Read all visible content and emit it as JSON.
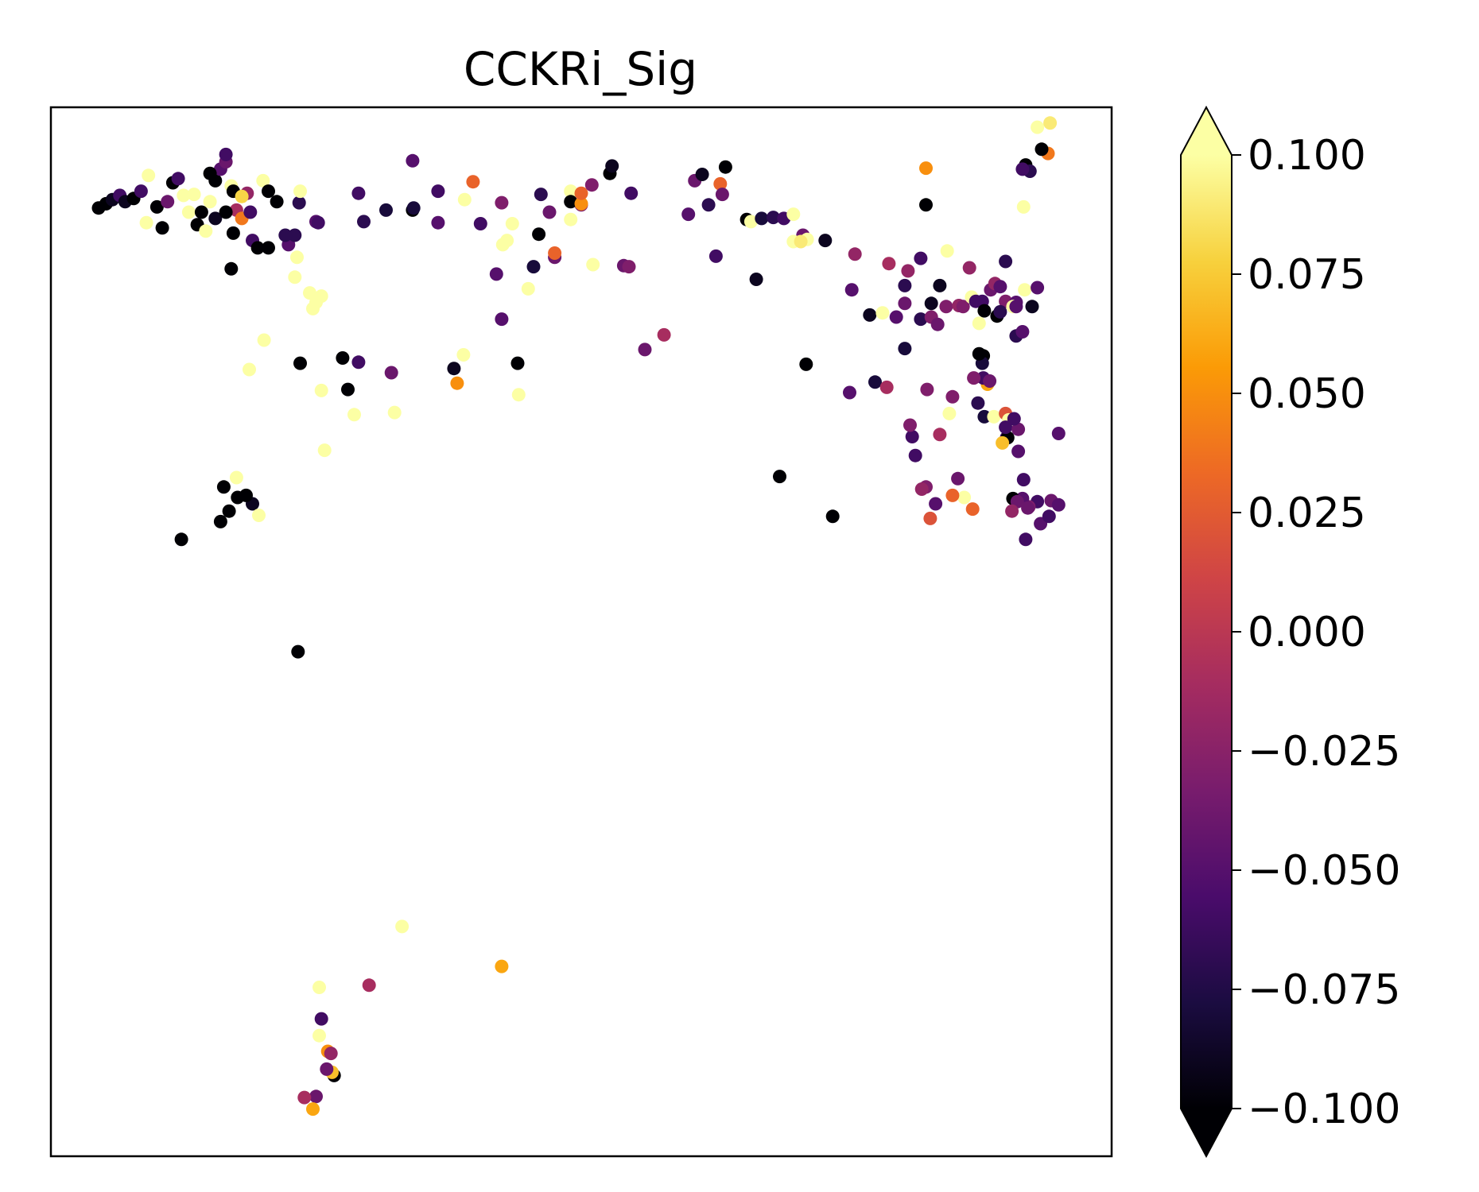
{
  "chart_data": {
    "type": "scatter",
    "title": "CCKRi_Sig",
    "xlabel": "",
    "ylabel": "",
    "xlim": [
      0,
      1
    ],
    "ylim": [
      0,
      1
    ],
    "grid": false,
    "axes_ticks": false,
    "colormap": "inferno",
    "colorbar": {
      "min": -0.1,
      "max": 0.1,
      "extend": "both",
      "ticks": [
        0.1,
        0.075,
        0.05,
        0.025,
        0.0,
        -0.025,
        -0.05,
        -0.075,
        -0.1
      ],
      "tick_labels": [
        "0.100",
        "0.075",
        "0.050",
        "0.025",
        "0.000",
        "−0.025",
        "−0.050",
        "−0.075",
        "−0.100"
      ]
    },
    "colormap_stops": [
      "#000004",
      "#1b0c41",
      "#4a0c6b",
      "#781c6d",
      "#a52c60",
      "#cf4446",
      "#ed6925",
      "#fb9b06",
      "#f7d13d",
      "#fcffa4"
    ],
    "points": [
      [
        0.045,
        0.904,
        -0.1
      ],
      [
        0.052,
        0.908,
        -0.1
      ],
      [
        0.058,
        0.912,
        -0.09
      ],
      [
        0.065,
        0.916,
        -0.06
      ],
      [
        0.07,
        0.91,
        -0.09
      ],
      [
        0.078,
        0.913,
        -0.1
      ],
      [
        0.085,
        0.92,
        -0.06
      ],
      [
        0.092,
        0.935,
        0.1
      ],
      [
        0.09,
        0.89,
        0.1
      ],
      [
        0.1,
        0.905,
        -0.1
      ],
      [
        0.105,
        0.885,
        -0.1
      ],
      [
        0.11,
        0.91,
        -0.04
      ],
      [
        0.115,
        0.928,
        -0.1
      ],
      [
        0.12,
        0.932,
        -0.06
      ],
      [
        0.125,
        0.916,
        0.1
      ],
      [
        0.13,
        0.9,
        0.1
      ],
      [
        0.135,
        0.917,
        0.1
      ],
      [
        0.142,
        0.9,
        -0.1
      ],
      [
        0.15,
        0.91,
        0.1
      ],
      [
        0.155,
        0.93,
        -0.1
      ],
      [
        0.16,
        0.941,
        -0.05
      ],
      [
        0.165,
        0.948,
        -0.04
      ],
      [
        0.17,
        0.925,
        0.1
      ],
      [
        0.172,
        0.92,
        -0.1
      ],
      [
        0.175,
        0.902,
        -0.01
      ],
      [
        0.18,
        0.894,
        0.04
      ],
      [
        0.185,
        0.918,
        -0.02
      ],
      [
        0.19,
        0.873,
        -0.06
      ],
      [
        0.2,
        0.93,
        0.1
      ],
      [
        0.205,
        0.92,
        -0.1
      ],
      [
        0.138,
        0.888,
        -0.1
      ],
      [
        0.15,
        0.937,
        -0.1
      ],
      [
        0.155,
        0.894,
        -0.09
      ],
      [
        0.17,
        0.846,
        -0.1
      ],
      [
        0.165,
        0.955,
        -0.06
      ],
      [
        0.188,
        0.9,
        -0.06
      ],
      [
        0.18,
        0.915,
        0.08
      ],
      [
        0.195,
        0.866,
        -0.1
      ],
      [
        0.172,
        0.88,
        -0.1
      ],
      [
        0.165,
        0.9,
        -0.1
      ],
      [
        0.146,
        0.882,
        0.1
      ],
      [
        0.205,
        0.866,
        -0.1
      ],
      [
        0.213,
        0.91,
        -0.1
      ],
      [
        0.224,
        0.869,
        -0.05
      ],
      [
        0.232,
        0.857,
        0.1
      ],
      [
        0.234,
        0.909,
        -0.07
      ],
      [
        0.25,
        0.891,
        -0.05
      ],
      [
        0.252,
        0.89,
        -0.06
      ],
      [
        0.235,
        0.92,
        0.1
      ],
      [
        0.23,
        0.878,
        -0.07
      ],
      [
        0.23,
        0.838,
        0.1
      ],
      [
        0.244,
        0.823,
        0.1
      ],
      [
        0.25,
        0.814,
        0.1
      ],
      [
        0.255,
        0.82,
        0.1
      ],
      [
        0.247,
        0.808,
        0.1
      ],
      [
        0.221,
        0.878,
        -0.07
      ],
      [
        0.201,
        0.778,
        0.1
      ],
      [
        0.187,
        0.75,
        0.1
      ],
      [
        0.235,
        0.756,
        -0.1
      ],
      [
        0.275,
        0.761,
        -0.1
      ],
      [
        0.29,
        0.757,
        -0.06
      ],
      [
        0.255,
        0.73,
        0.1
      ],
      [
        0.28,
        0.731,
        -0.1
      ],
      [
        0.286,
        0.707,
        0.1
      ],
      [
        0.324,
        0.709,
        0.1
      ],
      [
        0.321,
        0.747,
        -0.04
      ],
      [
        0.389,
        0.764,
        0.1
      ],
      [
        0.38,
        0.751,
        -0.09
      ],
      [
        0.383,
        0.737,
        0.05
      ],
      [
        0.44,
        0.756,
        -0.1
      ],
      [
        0.441,
        0.726,
        0.1
      ],
      [
        0.258,
        0.673,
        0.1
      ],
      [
        0.163,
        0.638,
        -0.1
      ],
      [
        0.168,
        0.615,
        -0.1
      ],
      [
        0.16,
        0.605,
        -0.1
      ],
      [
        0.123,
        0.588,
        -0.1
      ],
      [
        0.19,
        0.622,
        -0.09
      ],
      [
        0.184,
        0.63,
        -0.1
      ],
      [
        0.196,
        0.611,
        0.1
      ],
      [
        0.176,
        0.628,
        -0.1
      ],
      [
        0.175,
        0.647,
        0.1
      ],
      [
        0.233,
        0.481,
        -0.1
      ],
      [
        0.331,
        0.219,
        0.1
      ],
      [
        0.253,
        0.161,
        0.1
      ],
      [
        0.3,
        0.163,
        -0.01
      ],
      [
        0.425,
        0.181,
        0.06
      ],
      [
        0.255,
        0.131,
        -0.06
      ],
      [
        0.253,
        0.115,
        0.1
      ],
      [
        0.261,
        0.1,
        0.05
      ],
      [
        0.264,
        0.098,
        -0.02
      ],
      [
        0.267,
        0.077,
        -0.1
      ],
      [
        0.265,
        0.08,
        0.07
      ],
      [
        0.26,
        0.083,
        -0.04
      ],
      [
        0.25,
        0.057,
        -0.04
      ],
      [
        0.239,
        0.056,
        -0.01
      ],
      [
        0.247,
        0.045,
        0.06
      ],
      [
        0.295,
        0.891,
        -0.07
      ],
      [
        0.29,
        0.918,
        -0.06
      ],
      [
        0.316,
        0.902,
        -0.08
      ],
      [
        0.341,
        0.902,
        -0.1
      ],
      [
        0.341,
        0.949,
        -0.05
      ],
      [
        0.342,
        0.904,
        -0.08
      ],
      [
        0.365,
        0.92,
        -0.06
      ],
      [
        0.365,
        0.89,
        -0.05
      ],
      [
        0.39,
        0.912,
        0.1
      ],
      [
        0.398,
        0.929,
        0.03
      ],
      [
        0.405,
        0.889,
        -0.06
      ],
      [
        0.425,
        0.909,
        -0.03
      ],
      [
        0.426,
        0.869,
        0.1
      ],
      [
        0.43,
        0.873,
        0.1
      ],
      [
        0.435,
        0.889,
        0.1
      ],
      [
        0.42,
        0.841,
        -0.05
      ],
      [
        0.425,
        0.798,
        -0.05
      ],
      [
        0.45,
        0.827,
        0.1
      ],
      [
        0.455,
        0.848,
        -0.08
      ],
      [
        0.46,
        0.879,
        -0.1
      ],
      [
        0.462,
        0.917,
        -0.07
      ],
      [
        0.475,
        0.857,
        -0.04
      ],
      [
        0.475,
        0.861,
        0.03
      ],
      [
        0.49,
        0.893,
        0.1
      ],
      [
        0.47,
        0.9,
        -0.04
      ],
      [
        0.49,
        0.92,
        0.1
      ],
      [
        0.5,
        0.907,
        -0.03
      ],
      [
        0.511,
        0.85,
        0.1
      ],
      [
        0.527,
        0.937,
        -0.1
      ],
      [
        0.529,
        0.944,
        -0.09
      ],
      [
        0.49,
        0.91,
        -0.1
      ],
      [
        0.5,
        0.908,
        0.05
      ],
      [
        0.5,
        0.918,
        0.03
      ],
      [
        0.51,
        0.926,
        -0.03
      ],
      [
        0.54,
        0.849,
        -0.04
      ],
      [
        0.545,
        0.848,
        -0.03
      ],
      [
        0.547,
        0.918,
        -0.06
      ],
      [
        0.56,
        0.769,
        -0.04
      ],
      [
        0.578,
        0.783,
        -0.01
      ],
      [
        0.601,
        0.898,
        -0.05
      ],
      [
        0.607,
        0.93,
        -0.04
      ],
      [
        0.614,
        0.936,
        -0.09
      ],
      [
        0.62,
        0.907,
        -0.07
      ],
      [
        0.636,
        0.943,
        -0.1
      ],
      [
        0.627,
        0.858,
        -0.06
      ],
      [
        0.631,
        0.927,
        0.03
      ],
      [
        0.633,
        0.917,
        -0.04
      ],
      [
        0.656,
        0.893,
        -0.1
      ],
      [
        0.66,
        0.891,
        0.1
      ],
      [
        0.665,
        0.836,
        -0.09
      ],
      [
        0.67,
        0.894,
        -0.08
      ],
      [
        0.681,
        0.895,
        -0.07
      ],
      [
        0.691,
        0.894,
        -0.06
      ],
      [
        0.7,
        0.898,
        0.1
      ],
      [
        0.709,
        0.878,
        -0.04
      ],
      [
        0.7,
        0.872,
        0.1
      ],
      [
        0.713,
        0.874,
        0.1
      ],
      [
        0.707,
        0.872,
        0.09
      ],
      [
        0.712,
        0.755,
        -0.1
      ],
      [
        0.687,
        0.648,
        -0.1
      ],
      [
        0.737,
        0.61,
        -0.1
      ],
      [
        0.73,
        0.873,
        -0.09
      ],
      [
        0.755,
        0.826,
        -0.05
      ],
      [
        0.758,
        0.86,
        -0.02
      ],
      [
        0.753,
        0.728,
        -0.05
      ],
      [
        0.777,
        0.738,
        -0.08
      ],
      [
        0.788,
        0.733,
        -0.01
      ],
      [
        0.772,
        0.802,
        -0.09
      ],
      [
        0.784,
        0.804,
        0.1
      ],
      [
        0.79,
        0.851,
        -0.01
      ],
      [
        0.797,
        0.8,
        -0.05
      ],
      [
        0.805,
        0.813,
        -0.04
      ],
      [
        0.808,
        0.844,
        -0.02
      ],
      [
        0.805,
        0.83,
        -0.07
      ],
      [
        0.805,
        0.77,
        -0.08
      ],
      [
        0.82,
        0.798,
        -0.07
      ],
      [
        0.83,
        0.8,
        -0.03
      ],
      [
        0.836,
        0.793,
        -0.04
      ],
      [
        0.83,
        0.813,
        -0.09
      ],
      [
        0.845,
        0.863,
        0.1
      ],
      [
        0.825,
        0.907,
        -0.1
      ],
      [
        0.825,
        0.942,
        0.05
      ],
      [
        0.82,
        0.856,
        -0.06
      ],
      [
        0.838,
        0.83,
        -0.09
      ],
      [
        0.844,
        0.81,
        -0.03
      ],
      [
        0.856,
        0.811,
        -0.02
      ],
      [
        0.86,
        0.81,
        -0.03
      ],
      [
        0.866,
        0.847,
        -0.02
      ],
      [
        0.868,
        0.819,
        0.1
      ],
      [
        0.872,
        0.815,
        -0.06
      ],
      [
        0.875,
        0.794,
        0.1
      ],
      [
        0.878,
        0.815,
        -0.06
      ],
      [
        0.88,
        0.806,
        -0.1
      ],
      [
        0.886,
        0.826,
        -0.04
      ],
      [
        0.89,
        0.832,
        -0.02
      ],
      [
        0.895,
        0.829,
        -0.05
      ],
      [
        0.892,
        0.801,
        -0.1
      ],
      [
        0.9,
        0.815,
        -0.03
      ],
      [
        0.91,
        0.814,
        -0.05
      ],
      [
        0.907,
        0.81,
        0.1
      ],
      [
        0.918,
        0.826,
        0.1
      ],
      [
        0.925,
        0.81,
        -0.09
      ],
      [
        0.93,
        0.828,
        -0.05
      ],
      [
        0.9,
        0.853,
        -0.07
      ],
      [
        0.91,
        0.782,
        -0.07
      ],
      [
        0.91,
        0.81,
        -0.05
      ],
      [
        0.916,
        0.786,
        -0.05
      ],
      [
        0.917,
        0.905,
        0.1
      ],
      [
        0.919,
        0.945,
        -0.1
      ],
      [
        0.923,
        0.939,
        -0.07
      ],
      [
        0.916,
        0.941,
        -0.06
      ],
      [
        0.93,
        0.981,
        0.1
      ],
      [
        0.942,
        0.985,
        0.09
      ],
      [
        0.94,
        0.956,
        0.04
      ],
      [
        0.934,
        0.96,
        -0.1
      ],
      [
        0.895,
        0.805,
        -0.07
      ],
      [
        0.879,
        0.763,
        -0.1
      ],
      [
        0.878,
        0.756,
        -0.08
      ],
      [
        0.875,
        0.765,
        -0.1
      ],
      [
        0.883,
        0.736,
        0.06
      ],
      [
        0.879,
        0.742,
        -0.06
      ],
      [
        0.885,
        0.739,
        -0.04
      ],
      [
        0.87,
        0.742,
        -0.03
      ],
      [
        0.874,
        0.718,
        -0.07
      ],
      [
        0.88,
        0.705,
        -0.08
      ],
      [
        0.889,
        0.705,
        0.1
      ],
      [
        0.9,
        0.708,
        0.02
      ],
      [
        0.903,
        0.702,
        0.1
      ],
      [
        0.901,
        0.685,
        -0.06
      ],
      [
        0.902,
        0.685,
        -0.1
      ],
      [
        0.897,
        0.68,
        0.07
      ],
      [
        0.9,
        0.695,
        -0.06
      ],
      [
        0.912,
        0.693,
        -0.04
      ],
      [
        0.908,
        0.703,
        -0.06
      ],
      [
        0.912,
        0.672,
        -0.05
      ],
      [
        0.917,
        0.645,
        -0.06
      ],
      [
        0.93,
        0.624,
        -0.06
      ],
      [
        0.922,
        0.619,
        -0.03
      ],
      [
        0.916,
        0.627,
        -0.05
      ],
      [
        0.921,
        0.618,
        -0.04
      ],
      [
        0.907,
        0.627,
        -0.1
      ],
      [
        0.911,
        0.624,
        -0.04
      ],
      [
        0.906,
        0.615,
        -0.02
      ],
      [
        0.919,
        0.588,
        -0.06
      ],
      [
        0.933,
        0.603,
        -0.05
      ],
      [
        0.941,
        0.61,
        -0.06
      ],
      [
        0.943,
        0.625,
        -0.04
      ],
      [
        0.95,
        0.689,
        -0.05
      ],
      [
        0.95,
        0.621,
        -0.05
      ],
      [
        0.869,
        0.617,
        0.03
      ],
      [
        0.834,
        0.622,
        -0.05
      ],
      [
        0.838,
        0.688,
        -0.01
      ],
      [
        0.847,
        0.708,
        0.1
      ],
      [
        0.826,
        0.731,
        -0.03
      ],
      [
        0.85,
        0.724,
        -0.03
      ],
      [
        0.855,
        0.646,
        -0.04
      ],
      [
        0.861,
        0.628,
        0.1
      ],
      [
        0.85,
        0.63,
        0.03
      ],
      [
        0.829,
        0.608,
        0.02
      ],
      [
        0.825,
        0.638,
        -0.03
      ],
      [
        0.821,
        0.636,
        -0.02
      ],
      [
        0.815,
        0.668,
        -0.06
      ],
      [
        0.812,
        0.686,
        -0.06
      ],
      [
        0.81,
        0.697,
        -0.03
      ]
    ]
  }
}
